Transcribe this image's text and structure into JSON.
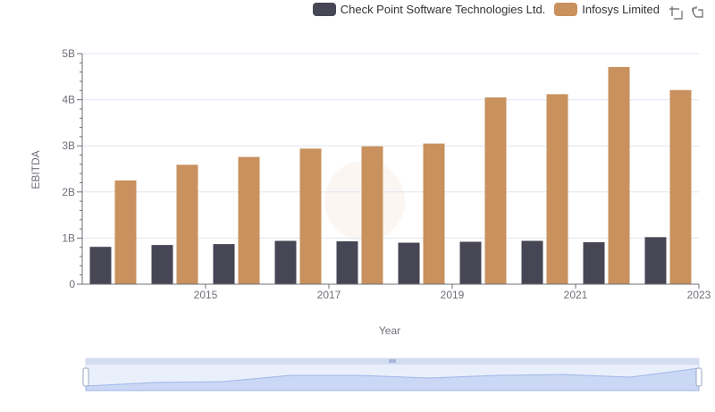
{
  "legend": {
    "items": [
      {
        "label": "Check Point Software Technologies Ltd.",
        "color": "#464655"
      },
      {
        "label": "Infosys Limited",
        "color": "#c8915e"
      }
    ]
  },
  "toolbox": {
    "icons": [
      "zoom-icon",
      "restore-icon"
    ]
  },
  "chart_data": {
    "type": "bar",
    "xlabel": "Year",
    "ylabel": "EBITDA",
    "categories": [
      "2014",
      "2015",
      "2016",
      "2017",
      "2018",
      "2019",
      "2020",
      "2021",
      "2022",
      "2023"
    ],
    "x_tick_labels": [
      "2015",
      "2017",
      "2019",
      "2021",
      "2023"
    ],
    "y_tick_labels": [
      "0",
      "1B",
      "2B",
      "3B",
      "4B",
      "5B"
    ],
    "ylim": [
      0,
      5000000000
    ],
    "grid": true,
    "legend_position": "top-right",
    "series": [
      {
        "name": "Check Point Software Technologies Ltd.",
        "color": "#464655",
        "values": [
          810000000,
          850000000,
          870000000,
          940000000,
          930000000,
          900000000,
          920000000,
          940000000,
          910000000,
          1020000000
        ]
      },
      {
        "name": "Infosys Limited",
        "color": "#c8915e",
        "values": [
          2250000000,
          2590000000,
          2760000000,
          2940000000,
          2990000000,
          3050000000,
          4050000000,
          4120000000,
          4710000000,
          4210000000
        ]
      }
    ]
  }
}
